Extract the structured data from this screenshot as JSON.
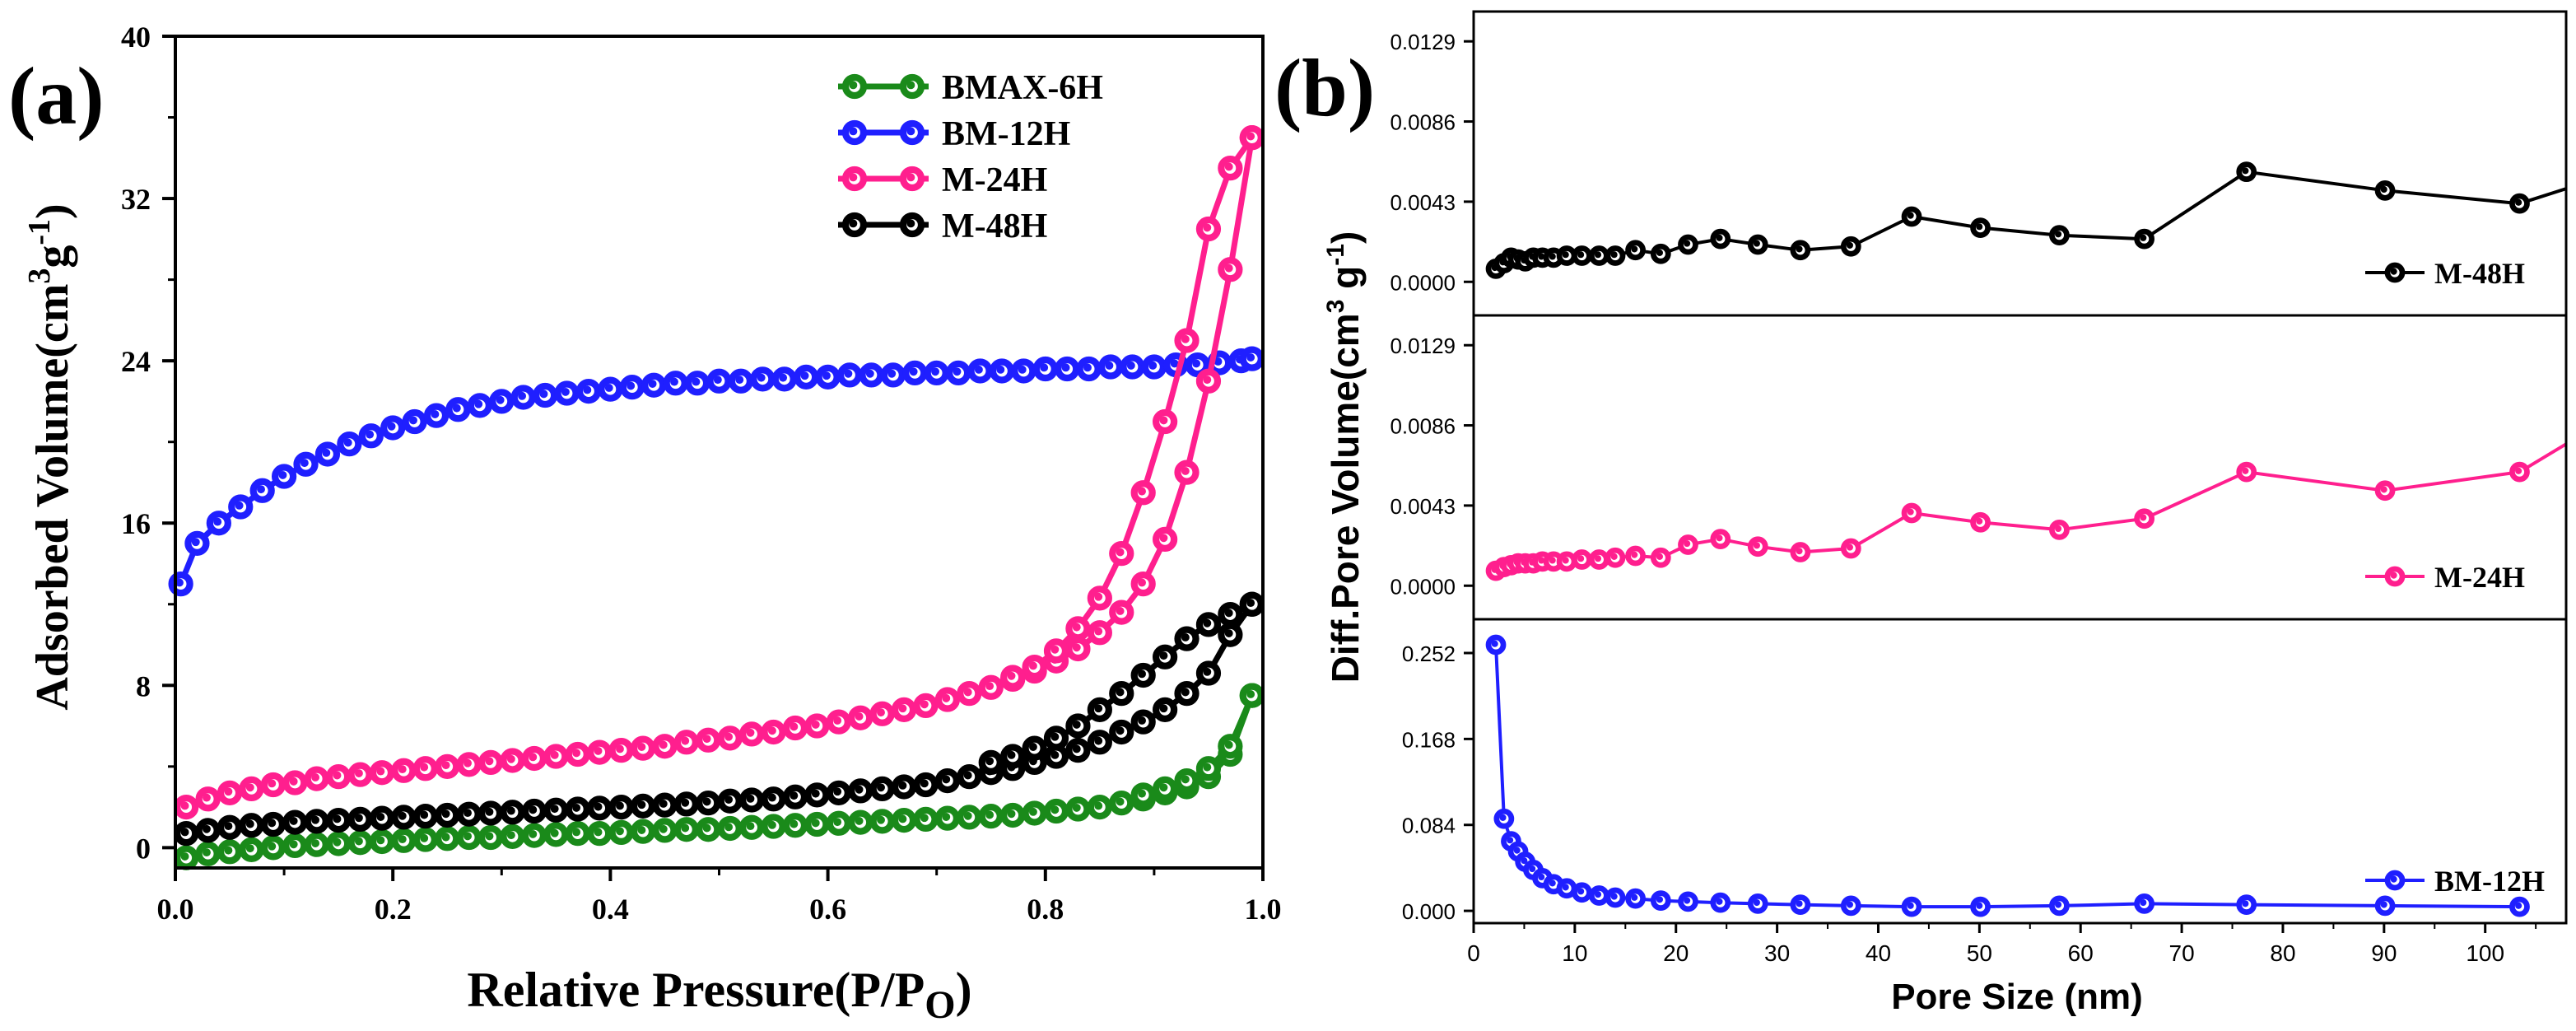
{
  "chart_data": [
    {
      "panel_label": "(a)",
      "type": "line",
      "title": "",
      "xlabel": "Relative Pressure(P/P",
      "xlabel_sub": "O",
      "xlabel_close": ")",
      "ylabel": "Adsorbed Volume(cm",
      "ylabel_sup": "3",
      "ylabel_mid": "g",
      "ylabel_sup2": "-1",
      "ylabel_close": ")",
      "xlim": [
        0.0,
        1.0
      ],
      "ylim": [
        -1,
        40
      ],
      "xticks": [
        0.0,
        0.2,
        0.4,
        0.6,
        0.8,
        1.0
      ],
      "xtick_labels": [
        "0.0",
        "0.2",
        "0.4",
        "0.6",
        "0.8",
        "1.0"
      ],
      "yticks": [
        0,
        8,
        16,
        24,
        32,
        40
      ],
      "ytick_labels": [
        "0",
        "8",
        "16",
        "24",
        "32",
        "40"
      ],
      "legend_position": "top-right",
      "series": [
        {
          "name": "BMAX-6H",
          "color": "#1a8a1a",
          "adsorption": {
            "x": [
              0.01,
              0.03,
              0.05,
              0.07,
              0.09,
              0.11,
              0.13,
              0.15,
              0.17,
              0.19,
              0.21,
              0.23,
              0.25,
              0.27,
              0.29,
              0.31,
              0.33,
              0.35,
              0.37,
              0.39,
              0.41,
              0.43,
              0.45,
              0.47,
              0.49,
              0.51,
              0.53,
              0.55,
              0.57,
              0.59,
              0.61,
              0.63,
              0.65,
              0.67,
              0.69,
              0.71,
              0.73,
              0.75,
              0.77,
              0.79,
              0.81,
              0.83,
              0.85,
              0.87,
              0.89,
              0.91,
              0.93,
              0.95,
              0.97,
              0.99
            ],
            "y": [
              -0.5,
              -0.3,
              -0.2,
              -0.1,
              0.0,
              0.1,
              0.15,
              0.2,
              0.25,
              0.3,
              0.35,
              0.4,
              0.45,
              0.5,
              0.5,
              0.55,
              0.6,
              0.65,
              0.7,
              0.7,
              0.75,
              0.8,
              0.85,
              0.9,
              0.9,
              0.95,
              1.0,
              1.05,
              1.1,
              1.15,
              1.2,
              1.25,
              1.3,
              1.35,
              1.4,
              1.45,
              1.5,
              1.55,
              1.6,
              1.7,
              1.8,
              1.9,
              2.0,
              2.2,
              2.4,
              2.7,
              3.0,
              3.5,
              4.6,
              7.5
            ]
          },
          "desorption": {
            "x": [
              0.99,
              0.97,
              0.95,
              0.93,
              0.91,
              0.89
            ],
            "y": [
              7.5,
              5.0,
              3.9,
              3.3,
              2.9,
              2.6
            ]
          }
        },
        {
          "name": "BM-12H",
          "color": "#1f1fff",
          "adsorption": {
            "x": [
              0.005,
              0.02,
              0.04,
              0.06,
              0.08,
              0.1,
              0.12,
              0.14,
              0.16,
              0.18,
              0.2,
              0.22,
              0.24,
              0.26,
              0.28,
              0.3,
              0.32,
              0.34,
              0.36,
              0.38,
              0.4,
              0.42,
              0.44,
              0.46,
              0.48,
              0.5,
              0.52,
              0.54,
              0.56,
              0.58,
              0.6,
              0.62,
              0.64,
              0.66,
              0.68,
              0.7,
              0.72,
              0.74,
              0.76,
              0.78,
              0.8,
              0.82,
              0.84,
              0.86,
              0.88,
              0.9,
              0.92,
              0.94,
              0.96,
              0.98,
              0.99
            ],
            "y": [
              13.0,
              15.0,
              16.0,
              16.8,
              17.6,
              18.3,
              18.9,
              19.4,
              19.9,
              20.3,
              20.7,
              21.0,
              21.3,
              21.6,
              21.8,
              22.0,
              22.2,
              22.3,
              22.4,
              22.5,
              22.6,
              22.7,
              22.8,
              22.9,
              22.9,
              23.0,
              23.0,
              23.1,
              23.1,
              23.2,
              23.2,
              23.3,
              23.3,
              23.3,
              23.4,
              23.4,
              23.4,
              23.5,
              23.5,
              23.5,
              23.6,
              23.6,
              23.6,
              23.7,
              23.7,
              23.7,
              23.8,
              23.8,
              23.9,
              24.0,
              24.1
            ]
          },
          "desorption": {
            "x": [],
            "y": []
          }
        },
        {
          "name": "M-24H",
          "color": "#ff1f8e",
          "adsorption": {
            "x": [
              0.01,
              0.03,
              0.05,
              0.07,
              0.09,
              0.11,
              0.13,
              0.15,
              0.17,
              0.19,
              0.21,
              0.23,
              0.25,
              0.27,
              0.29,
              0.31,
              0.33,
              0.35,
              0.37,
              0.39,
              0.41,
              0.43,
              0.45,
              0.47,
              0.49,
              0.51,
              0.53,
              0.55,
              0.57,
              0.59,
              0.61,
              0.63,
              0.65,
              0.67,
              0.69,
              0.71,
              0.73,
              0.75,
              0.77,
              0.79,
              0.81,
              0.83,
              0.85,
              0.87,
              0.89,
              0.91,
              0.93,
              0.95,
              0.97,
              0.99
            ],
            "y": [
              2.0,
              2.4,
              2.7,
              2.9,
              3.1,
              3.2,
              3.4,
              3.5,
              3.6,
              3.7,
              3.8,
              3.9,
              4.0,
              4.1,
              4.2,
              4.3,
              4.4,
              4.5,
              4.6,
              4.7,
              4.8,
              4.9,
              5.0,
              5.2,
              5.3,
              5.4,
              5.6,
              5.7,
              5.9,
              6.0,
              6.2,
              6.4,
              6.6,
              6.8,
              7.0,
              7.3,
              7.6,
              7.9,
              8.3,
              8.7,
              9.2,
              9.8,
              10.6,
              11.6,
              13.0,
              15.2,
              18.5,
              23.0,
              28.5,
              35.0
            ]
          },
          "desorption": {
            "x": [
              0.99,
              0.97,
              0.95,
              0.93,
              0.91,
              0.89,
              0.87,
              0.85,
              0.83,
              0.81,
              0.79,
              0.77
            ],
            "y": [
              35.0,
              33.5,
              30.5,
              25.0,
              21.0,
              17.5,
              14.5,
              12.3,
              10.8,
              9.7,
              8.9,
              8.4
            ]
          }
        },
        {
          "name": "M-48H",
          "color": "#000000",
          "adsorption": {
            "x": [
              0.01,
              0.03,
              0.05,
              0.07,
              0.09,
              0.11,
              0.13,
              0.15,
              0.17,
              0.19,
              0.21,
              0.23,
              0.25,
              0.27,
              0.29,
              0.31,
              0.33,
              0.35,
              0.37,
              0.39,
              0.41,
              0.43,
              0.45,
              0.47,
              0.49,
              0.51,
              0.53,
              0.55,
              0.57,
              0.59,
              0.61,
              0.63,
              0.65,
              0.67,
              0.69,
              0.71,
              0.73,
              0.75,
              0.77,
              0.79,
              0.81,
              0.83,
              0.85,
              0.87,
              0.89,
              0.91,
              0.93,
              0.95,
              0.97,
              0.99
            ],
            "y": [
              0.7,
              0.85,
              1.0,
              1.1,
              1.15,
              1.25,
              1.3,
              1.35,
              1.4,
              1.45,
              1.5,
              1.55,
              1.6,
              1.65,
              1.7,
              1.75,
              1.8,
              1.85,
              1.9,
              1.95,
              2.0,
              2.05,
              2.1,
              2.15,
              2.2,
              2.3,
              2.35,
              2.4,
              2.5,
              2.6,
              2.7,
              2.8,
              2.9,
              3.0,
              3.1,
              3.3,
              3.5,
              3.7,
              3.9,
              4.2,
              4.5,
              4.8,
              5.2,
              5.7,
              6.2,
              6.8,
              7.6,
              8.6,
              10.5,
              12.0
            ]
          },
          "desorption": {
            "x": [
              0.99,
              0.97,
              0.95,
              0.93,
              0.91,
              0.89,
              0.87,
              0.85,
              0.83,
              0.81,
              0.79,
              0.77,
              0.75
            ],
            "y": [
              12.0,
              11.5,
              11.0,
              10.3,
              9.4,
              8.5,
              7.6,
              6.8,
              6.0,
              5.4,
              4.9,
              4.5,
              4.2
            ]
          }
        }
      ]
    },
    {
      "panel_label": "(b)",
      "type": "line",
      "title": "",
      "xlabel": "Pore Size (nm)",
      "ylabel": "Diff.Pore Volume(cm",
      "ylabel_sup": "3",
      "ylabel_mid": " g",
      "ylabel_sup2": "-1",
      "ylabel_close": ")",
      "xlim": [
        0,
        108
      ],
      "xticks": [
        0,
        10,
        20,
        30,
        40,
        50,
        60,
        70,
        80,
        90,
        100
      ],
      "xtick_labels": [
        "0",
        "10",
        "20",
        "30",
        "40",
        "50",
        "60",
        "70",
        "80",
        "90",
        "100"
      ],
      "stacked_panels": [
        {
          "name": "M-48H",
          "color": "#000000",
          "ylim": [
            -0.0018,
            0.0145
          ],
          "yticks": [
            0.0,
            0.0043,
            0.0086,
            0.0129
          ],
          "ytick_labels": [
            "0.0000",
            "0.0043",
            "0.0086",
            "0.0129"
          ],
          "legend_position": "bottom-right",
          "x": [
            2.2,
            3.0,
            3.7,
            4.4,
            5.1,
            5.9,
            6.8,
            7.9,
            9.2,
            10.7,
            12.4,
            14.0,
            16.0,
            18.5,
            21.2,
            24.4,
            28.1,
            32.3,
            37.3,
            43.3,
            50.1,
            57.9,
            66.3,
            76.4,
            90.1,
            103.4,
            108.0
          ],
          "y": [
            0.0007,
            0.001,
            0.0013,
            0.0012,
            0.0011,
            0.0013,
            0.0013,
            0.0013,
            0.0014,
            0.0014,
            0.0014,
            0.0014,
            0.0017,
            0.0015,
            0.002,
            0.0023,
            0.002,
            0.0017,
            0.0019,
            0.0035,
            0.0029,
            0.0025,
            0.0023,
            0.0059,
            0.0049,
            0.0042,
            0.005
          ]
        },
        {
          "name": "M-24H",
          "color": "#ff1f8e",
          "ylim": [
            -0.0018,
            0.0145
          ],
          "yticks": [
            0.0,
            0.0043,
            0.0086,
            0.0129
          ],
          "ytick_labels": [
            "0.0000",
            "0.0043",
            "0.0086",
            "0.0129"
          ],
          "legend_position": "bottom-right",
          "x": [
            2.2,
            3.0,
            3.7,
            4.4,
            5.1,
            5.9,
            6.8,
            7.9,
            9.2,
            10.7,
            12.4,
            14.0,
            16.0,
            18.5,
            21.2,
            24.4,
            28.1,
            32.3,
            37.3,
            43.3,
            50.1,
            57.9,
            66.3,
            76.4,
            90.1,
            103.4,
            108.0
          ],
          "y": [
            0.0008,
            0.001,
            0.0011,
            0.0012,
            0.0012,
            0.0012,
            0.0013,
            0.0013,
            0.0013,
            0.0014,
            0.0014,
            0.0015,
            0.0016,
            0.0015,
            0.0022,
            0.0025,
            0.0021,
            0.0018,
            0.002,
            0.0039,
            0.0034,
            0.003,
            0.0036,
            0.0061,
            0.0051,
            0.0061,
            0.0076
          ]
        },
        {
          "name": "BM-12H",
          "color": "#1f1fff",
          "ylim": [
            -0.012,
            0.285
          ],
          "yticks": [
            0.0,
            0.084,
            0.168,
            0.252
          ],
          "ytick_labels": [
            "0.000",
            "0.084",
            "0.168",
            "0.252"
          ],
          "legend_position": "bottom-right",
          "x": [
            2.2,
            3.0,
            3.7,
            4.4,
            5.1,
            5.9,
            6.8,
            7.9,
            9.2,
            10.7,
            12.4,
            14.0,
            16.0,
            18.5,
            21.2,
            24.4,
            28.1,
            32.3,
            37.3,
            43.3,
            50.1,
            57.9,
            66.3,
            76.4,
            90.1,
            103.4
          ],
          "y": [
            0.26,
            0.09,
            0.068,
            0.058,
            0.048,
            0.04,
            0.032,
            0.026,
            0.022,
            0.018,
            0.015,
            0.013,
            0.012,
            0.01,
            0.009,
            0.008,
            0.007,
            0.006,
            0.005,
            0.004,
            0.004,
            0.005,
            0.007,
            0.006,
            0.005,
            0.004
          ]
        }
      ]
    }
  ]
}
